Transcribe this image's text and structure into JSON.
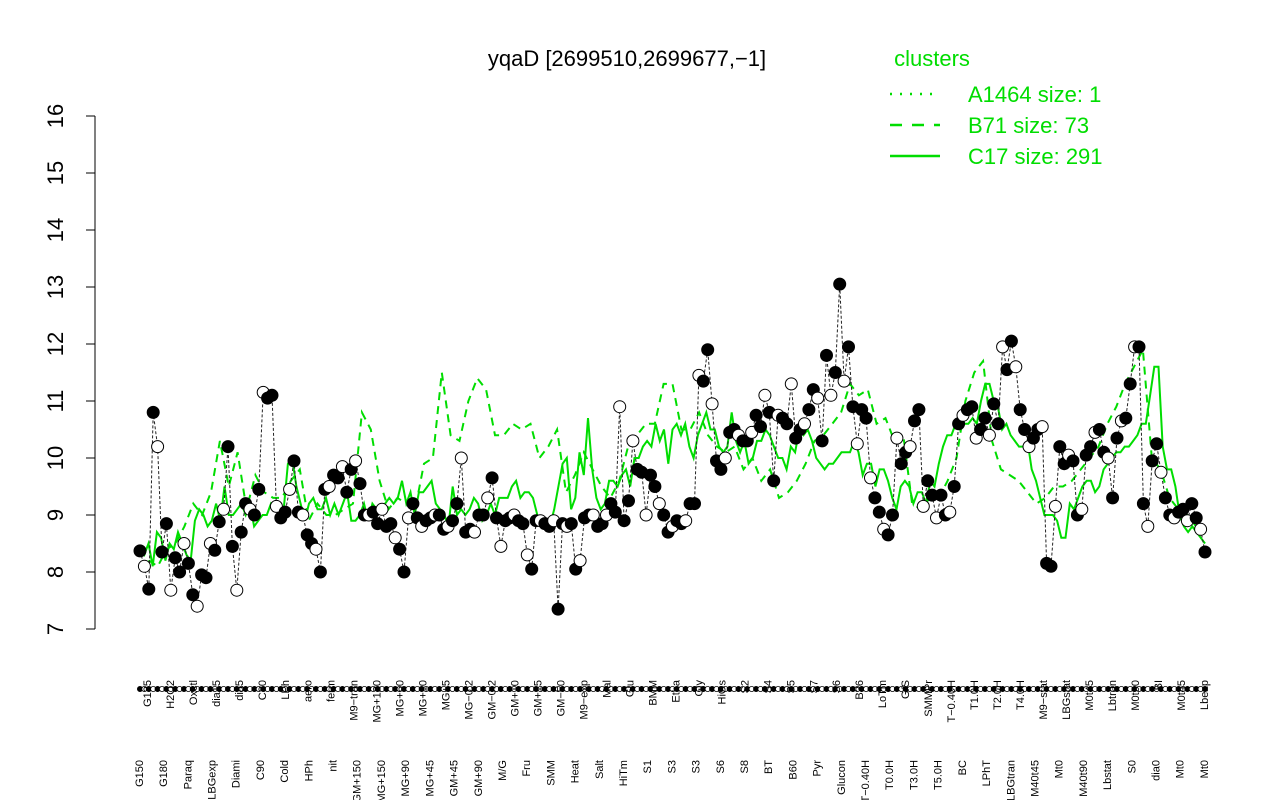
{
  "chart_data": {
    "type": "line",
    "title": "yqaD [2699510,2699677,−1]",
    "ylim": [
      7,
      16
    ],
    "yticks": [
      7,
      8,
      9,
      10,
      11,
      12,
      13,
      14,
      15,
      16
    ],
    "legend": {
      "title": "clusters",
      "placement": "top-right",
      "entries": [
        {
          "label": "A1464 size: 1",
          "style": "dotted"
        },
        {
          "label": "B71 size: 73",
          "style": "dashed"
        },
        {
          "label": "C17 size: 291",
          "style": "solid"
        }
      ]
    },
    "colors": {
      "cluster_line": "#00dd00",
      "points": "#000000",
      "legend_text": "#00dd00"
    },
    "x_labels_top": [
      "G135",
      "H2O2",
      "Oxctl",
      "dia15",
      "dia5",
      "C30",
      "LPh",
      "aero",
      "ferm",
      "M9−tran",
      "MG+120",
      "MG+60",
      "MG+10",
      "MG+5",
      "MG−0.2",
      "GM−0.2",
      "GM+10",
      "GM+15",
      "GM−50",
      "M9−exp",
      "Mal",
      "Glu",
      "BMM",
      "Etha",
      "Gly",
      "HiOs",
      "S2",
      "S4",
      "S5",
      "S7",
      "S6",
      "B36",
      "LoTm",
      "G/S",
      "SMMPr",
      "T−0.40H",
      "T1.0H",
      "T2.0H",
      "T4.0H",
      "M9−stat",
      "LBGstat",
      "M0t45",
      "Lbtran",
      "M0t90",
      "BI",
      "M0t45",
      "Lbexp"
    ],
    "x_labels_bottom": [
      "G150",
      "G180",
      "Paraq",
      "LBGexp",
      "Diami",
      "C90",
      "Cold",
      "HPh",
      "nit",
      "GM+150",
      "MG+150",
      "MG+90",
      "MG+45",
      "GM+45",
      "GM+90",
      "M/G",
      "Fru",
      "SMM",
      "Heat",
      "Salt",
      "HiTm",
      "S1",
      "S3",
      "S3",
      "S6",
      "S8",
      "BT",
      "B60",
      "Pyr",
      "Glucon",
      "T−0.40H",
      "T0.0H",
      "T3.0H",
      "T5.0H",
      "BC",
      "LPhT",
      "LBGtran",
      "M40t45",
      "Mt0",
      "M40t90",
      "Lbstat",
      "S0",
      "dia0",
      "Mt0",
      "Mt0"
    ],
    "series": [
      {
        "cluster": "C17",
        "values": [
          8.4,
          8.3,
          8.5,
          8.1,
          8.7,
          8.6,
          8.2,
          8.5,
          8.4,
          8.7,
          8.5,
          8.3,
          8.2,
          8.9,
          9.1,
          9.0,
          8.8,
          8.9,
          9.2,
          8.9,
          9.5,
          9.0,
          9.0,
          9.1,
          9.2,
          9.0,
          9.2,
          8.8,
          8.9,
          9.0,
          9.0,
          9.2,
          9.1,
          9.1,
          9.1,
          9.9,
          10.0,
          9.5,
          9.2,
          8.9,
          9.2,
          9.3,
          9.1,
          9.1,
          9.3,
          9.0,
          9.2,
          9.0,
          9.2,
          9.4,
          8.9,
          8.9,
          9.0,
          9.2,
          8.9,
          9.2,
          9.1,
          9.1,
          9.2,
          9.3,
          9.2,
          9.3,
          9.6,
          9.2,
          9.4,
          9.0,
          9.4,
          9.4,
          9.5,
          9.6,
          9.2,
          9.1,
          9.0,
          8.8,
          9.5,
          9.0,
          9.1,
          9.0,
          9.1,
          9.3,
          9.2,
          8.9,
          9.0,
          9.2,
          9.0,
          9.3,
          9.3,
          9.3,
          9.5,
          9.6,
          9.3,
          9.4,
          9.4,
          9.3,
          9.0,
          8.9,
          8.8,
          8.8,
          9.1,
          9.5,
          9.9,
          10.0,
          9.1,
          9.3,
          10.1,
          9.7,
          10.7,
          9.8,
          9.3,
          9.1,
          9.2,
          9.6,
          9.6,
          9.5,
          9.7,
          9.8,
          9.5,
          10.0,
          10.0,
          10.2,
          10.3,
          10.2,
          10.6,
          10.3,
          10.5,
          9.9,
          10.5,
          10.6,
          10.4,
          10.6,
          10.2,
          10.0,
          10.4,
          10.6,
          10.8,
          10.5,
          10.5,
          10.2,
          10.1,
          10.2,
          10.8,
          10.3,
          10.1,
          10.3,
          9.9,
          10.0,
          10.3,
          10.3,
          10.5,
          10.4,
          10.2,
          10.0,
          10.0,
          9.8,
          10.2,
          10.1,
          10.5,
          10.4,
          10.5,
          10.3,
          10.0,
          9.9,
          9.8,
          9.9,
          9.9,
          10.0,
          10.1,
          10.1,
          10.1,
          10.3,
          10.1,
          9.7,
          9.9,
          9.9,
          9.5,
          9.8,
          9.8,
          9.6,
          9.3,
          9.1,
          9.5,
          9.6,
          9.5,
          9.2,
          9.4,
          9.4,
          9.2,
          9.6,
          9.5,
          9.9,
          10.2,
          10.4,
          10.4,
          10.6,
          10.5,
          10.6,
          10.6,
          10.7,
          10.6,
          11.0,
          11.3,
          11.3,
          11.0,
          10.9,
          10.5,
          10.6,
          10.4,
          10.3,
          10.2,
          10.2,
          10.3,
          9.8,
          9.6,
          9.3,
          9.0,
          9.0,
          9.0,
          8.9,
          8.6,
          8.6,
          9.2,
          9.1,
          9.3,
          9.5,
          9.6,
          9.6,
          9.4,
          9.5,
          9.8,
          9.9,
          10.0,
          10.1,
          10.1,
          10.2,
          10.2,
          10.3,
          10.4,
          10.6,
          10.6,
          11.1,
          11.6,
          11.6,
          10.2,
          9.8,
          9.8,
          9.5,
          9.0,
          8.8,
          8.7,
          8.8,
          8.7,
          8.6,
          8.5
        ]
      },
      {
        "cluster": "B71",
        "values": [
          8.4,
          8.2,
          8.1,
          8.4,
          8.5,
          8.8,
          9.2,
          9.0,
          9.4,
          10.3,
          9.5,
          10.1,
          9.1,
          9.7,
          9.4,
          9.3,
          9.3,
          9.6,
          9.8,
          8.9,
          9.2,
          9.0,
          9.0,
          9.1,
          9.2,
          10.8,
          10.5,
          9.6,
          9.1,
          9.3,
          9.2,
          9.1,
          9.9,
          10.0,
          11.5,
          10.4,
          10.3,
          11.0,
          11.4,
          11.2,
          10.4,
          10.4,
          10.6,
          10.5,
          10.6,
          10.0,
          10.2,
          10.5,
          9.4,
          9.7,
          10.1,
          9.8,
          9.5,
          9.3,
          9.6,
          10.2,
          10.4,
          10.6,
          10.6,
          11.3,
          11.3,
          10.5,
          10.5,
          10.8,
          10.4,
          10.2,
          10.1,
          10.2,
          9.8,
          10.0,
          9.6,
          9.8,
          9.3,
          9.4,
          9.6,
          9.9,
          10.3,
          10.4,
          10.6,
          10.8,
          11.3,
          11.1,
          11.2,
          10.6,
          10.7,
          10.3,
          10.4,
          9.2,
          9.1,
          9.3,
          9.3,
          9.6,
          10.0,
          11.0,
          11.5,
          11.7,
          10.3,
          9.8,
          9.7,
          9.6,
          9.4,
          9.2,
          9.3,
          9.5,
          9.5,
          9.6,
          9.8,
          10.0,
          10.2,
          10.6,
          10.9,
          11.3,
          11.6,
          11.9,
          10.0,
          9.8,
          9.3,
          9.1,
          9.0,
          8.8,
          8.7
        ]
      },
      {
        "cluster": "A1464",
        "values": []
      }
    ],
    "points": [
      8.37,
      8.1,
      7.7,
      10.8,
      10.2,
      8.35,
      8.85,
      7.68,
      8.25,
      8.0,
      8.5,
      8.15,
      7.6,
      7.4,
      7.95,
      7.9,
      8.5,
      8.38,
      8.88,
      9.1,
      10.2,
      8.45,
      7.68,
      8.7,
      9.2,
      9.1,
      9.0,
      9.45,
      11.15,
      11.05,
      11.1,
      9.15,
      8.95,
      9.05,
      9.45,
      9.95,
      9.05,
      9.0,
      8.65,
      8.5,
      8.4,
      8.0,
      9.45,
      9.5,
      9.7,
      9.65,
      9.85,
      9.4,
      9.8,
      9.95,
      9.55,
      9.0,
      9.0,
      9.05,
      8.85,
      9.1,
      8.8,
      8.85,
      8.6,
      8.4,
      8.0,
      8.95,
      9.2,
      8.95,
      8.8,
      8.9,
      8.95,
      9.0,
      9.0,
      8.75,
      8.8,
      8.9,
      9.2,
      10.0,
      8.7,
      8.75,
      8.7,
      9.0,
      9.0,
      9.3,
      9.65,
      8.95,
      8.45,
      8.9,
      8.95,
      9.0,
      8.9,
      8.85,
      8.3,
      8.05,
      8.9,
      8.9,
      8.85,
      8.8,
      8.9,
      7.35,
      8.85,
      8.8,
      8.85,
      8.05,
      8.2,
      8.95,
      9.0,
      9.0,
      8.8,
      8.85,
      9.0,
      9.2,
      9.05,
      10.9,
      8.9,
      9.25,
      10.3,
      9.8,
      9.75,
      9.0,
      9.7,
      9.5,
      9.2,
      9.0,
      8.7,
      8.8,
      8.9,
      8.85,
      8.9,
      9.2,
      9.2,
      11.45,
      11.35,
      11.9,
      10.95,
      9.95,
      9.8,
      10.0,
      10.45,
      10.5,
      10.4,
      10.3,
      10.3,
      10.45,
      10.75,
      10.55,
      11.1,
      10.8,
      9.6,
      10.75,
      10.7,
      10.6,
      11.3,
      10.35,
      10.5,
      10.6,
      10.85,
      11.2,
      11.05,
      10.3,
      11.8,
      11.1,
      11.5,
      13.05,
      11.35,
      11.95,
      10.9,
      10.25,
      10.85,
      10.7,
      9.65,
      9.3,
      9.05,
      8.75,
      8.65,
      9.0,
      10.35,
      9.9,
      10.1,
      10.2,
      10.65,
      10.85,
      9.15,
      9.6,
      9.35,
      8.95,
      9.35,
      9.0,
      9.05,
      9.5,
      10.6,
      10.75,
      10.85,
      10.9,
      10.35,
      10.5,
      10.7,
      10.4,
      10.95,
      10.6,
      11.95,
      11.55,
      12.05,
      11.6,
      10.85,
      10.5,
      10.2,
      10.35,
      10.5,
      10.55,
      8.15,
      8.1,
      9.15,
      10.2,
      9.9,
      10.05,
      9.95,
      9.0,
      9.1,
      10.05,
      10.2,
      10.45,
      10.5,
      10.1,
      10.0,
      9.3,
      10.35,
      10.65,
      10.7,
      11.3,
      11.95,
      11.95,
      9.2,
      8.8,
      9.95,
      10.25,
      9.75,
      9.3,
      9.0,
      8.95,
      9.05,
      9.1,
      8.9,
      9.2,
      8.95,
      8.75,
      8.35
    ]
  }
}
